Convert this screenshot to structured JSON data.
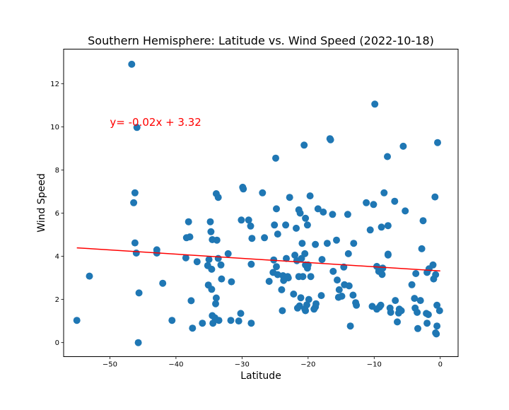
{
  "chart_data": {
    "type": "scatter",
    "title": "Southern Hemisphere: Latitude vs. Wind Speed (2022-10-18)",
    "xlabel": "Latitude",
    "ylabel": "Wind Speed",
    "xlim": [
      -57,
      2.7
    ],
    "ylim": [
      -0.65,
      13.6
    ],
    "xticks": [
      -50,
      -40,
      -30,
      -20,
      -10,
      0
    ],
    "yticks": [
      0,
      2,
      4,
      6,
      8,
      10,
      12
    ],
    "grid": false,
    "point_color": "#1f77b4",
    "regression": {
      "equation": "y= -0.02x + 3.32",
      "slope": -0.0195,
      "intercept": 3.32,
      "x_range": [
        -55,
        0
      ],
      "color": "#ff0000",
      "label_position": [
        -50,
        10.05
      ]
    },
    "points": [
      [
        -46.7,
        12.9
      ],
      [
        -45.9,
        9.97
      ],
      [
        -46.2,
        6.94
      ],
      [
        -46.4,
        6.48
      ],
      [
        -46.2,
        4.62
      ],
      [
        -46.0,
        4.15
      ],
      [
        -45.6,
        2.3
      ],
      [
        -45.7,
        0.0
      ],
      [
        -55.0,
        1.03
      ],
      [
        -53.1,
        3.08
      ],
      [
        -42.9,
        4.3
      ],
      [
        -42.9,
        4.15
      ],
      [
        -42.0,
        2.75
      ],
      [
        -40.6,
        1.03
      ],
      [
        -38.5,
        3.93
      ],
      [
        -38.4,
        4.86
      ],
      [
        -38.1,
        5.6
      ],
      [
        -37.9,
        4.9
      ],
      [
        -37.7,
        1.94
      ],
      [
        -37.5,
        0.67
      ],
      [
        -36.8,
        3.75
      ],
      [
        -36.0,
        0.9
      ],
      [
        -35.2,
        3.57
      ],
      [
        -35.1,
        2.67
      ],
      [
        -35.0,
        3.85
      ],
      [
        -34.8,
        5.6
      ],
      [
        -34.7,
        5.14
      ],
      [
        -34.6,
        2.47
      ],
      [
        -34.5,
        4.77
      ],
      [
        -34.6,
        3.4
      ],
      [
        -34.5,
        1.25
      ],
      [
        -34.4,
        0.9
      ],
      [
        -34.1,
        1.15
      ],
      [
        -34.0,
        1.8
      ],
      [
        -33.9,
        2.07
      ],
      [
        -33.9,
        6.9
      ],
      [
        -33.8,
        4.75
      ],
      [
        -33.6,
        6.73
      ],
      [
        -33.6,
        3.9
      ],
      [
        -33.5,
        1.03
      ],
      [
        -33.2,
        3.6
      ],
      [
        -33.1,
        2.95
      ],
      [
        -32.1,
        4.12
      ],
      [
        -31.7,
        1.03
      ],
      [
        -31.6,
        2.82
      ],
      [
        -30.5,
        1.0
      ],
      [
        -30.2,
        1.35
      ],
      [
        -30.1,
        5.68
      ],
      [
        -29.9,
        7.2
      ],
      [
        -29.8,
        7.12
      ],
      [
        -29.0,
        5.68
      ],
      [
        -28.7,
        5.4
      ],
      [
        -28.6,
        3.63
      ],
      [
        -28.6,
        0.9
      ],
      [
        -28.5,
        4.83
      ],
      [
        -26.9,
        6.94
      ],
      [
        -26.6,
        4.86
      ],
      [
        -25.9,
        2.84
      ],
      [
        -25.3,
        3.25
      ],
      [
        -25.2,
        3.83
      ],
      [
        -25.1,
        5.45
      ],
      [
        -24.9,
        8.55
      ],
      [
        -24.8,
        6.2
      ],
      [
        -24.8,
        3.52
      ],
      [
        -24.6,
        3.15
      ],
      [
        -24.6,
        5.03
      ],
      [
        -24.0,
        2.45
      ],
      [
        -23.9,
        1.48
      ],
      [
        -23.8,
        3.1
      ],
      [
        -23.7,
        2.88
      ],
      [
        -23.4,
        5.45
      ],
      [
        -23.3,
        3.9
      ],
      [
        -23.1,
        3.06
      ],
      [
        -23.0,
        3.0
      ],
      [
        -22.8,
        6.73
      ],
      [
        -22.2,
        2.25
      ],
      [
        -22.0,
        4.05
      ],
      [
        -21.8,
        5.3
      ],
      [
        -21.7,
        3.8
      ],
      [
        -21.6,
        1.6
      ],
      [
        -21.4,
        3.06
      ],
      [
        -21.4,
        6.15
      ],
      [
        -21.3,
        1.7
      ],
      [
        -21.2,
        6.0
      ],
      [
        -21.1,
        2.08
      ],
      [
        -21.0,
        3.9
      ],
      [
        -20.9,
        4.6
      ],
      [
        -20.8,
        3.06
      ],
      [
        -20.6,
        9.15
      ],
      [
        -20.5,
        1.55
      ],
      [
        -20.5,
        4.12
      ],
      [
        -20.4,
        1.48
      ],
      [
        -20.4,
        3.6
      ],
      [
        -20.4,
        5.76
      ],
      [
        -20.2,
        1.75
      ],
      [
        -20.1,
        3.45
      ],
      [
        -20.1,
        5.45
      ],
      [
        -20.0,
        3.6
      ],
      [
        -19.9,
        2.0
      ],
      [
        -19.7,
        6.8
      ],
      [
        -19.6,
        3.06
      ],
      [
        -19.1,
        1.55
      ],
      [
        -18.9,
        1.65
      ],
      [
        -18.9,
        4.55
      ],
      [
        -18.8,
        1.8
      ],
      [
        -18.5,
        6.2
      ],
      [
        -18.0,
        2.18
      ],
      [
        -17.9,
        3.85
      ],
      [
        -17.7,
        6.05
      ],
      [
        -17.1,
        4.6
      ],
      [
        -16.7,
        9.45
      ],
      [
        -16.6,
        9.4
      ],
      [
        -16.3,
        5.94
      ],
      [
        -16.2,
        3.3
      ],
      [
        -15.7,
        4.75
      ],
      [
        -15.6,
        2.9
      ],
      [
        -15.4,
        2.1
      ],
      [
        -15.3,
        2.45
      ],
      [
        -14.9,
        2.15
      ],
      [
        -14.6,
        3.5
      ],
      [
        -14.5,
        2.68
      ],
      [
        -14.0,
        5.94
      ],
      [
        -13.9,
        4.12
      ],
      [
        -13.8,
        2.63
      ],
      [
        -13.6,
        0.77
      ],
      [
        -13.2,
        2.2
      ],
      [
        -13.1,
        4.6
      ],
      [
        -12.8,
        1.85
      ],
      [
        -12.7,
        1.73
      ],
      [
        -11.2,
        6.48
      ],
      [
        -10.6,
        5.22
      ],
      [
        -10.3,
        1.68
      ],
      [
        -10.1,
        6.4
      ],
      [
        -9.9,
        11.05
      ],
      [
        -9.6,
        3.53
      ],
      [
        -9.6,
        1.55
      ],
      [
        -9.3,
        3.3
      ],
      [
        -9.2,
        1.65
      ],
      [
        -9.0,
        1.73
      ],
      [
        -8.9,
        5.35
      ],
      [
        -8.8,
        3.16
      ],
      [
        -8.7,
        3.45
      ],
      [
        -8.5,
        6.94
      ],
      [
        -8.0,
        8.62
      ],
      [
        -7.9,
        5.42
      ],
      [
        -7.9,
        4.1
      ],
      [
        -7.9,
        4.06
      ],
      [
        -7.6,
        1.6
      ],
      [
        -7.5,
        1.4
      ],
      [
        -6.9,
        6.55
      ],
      [
        -6.8,
        1.95
      ],
      [
        -6.5,
        0.96
      ],
      [
        -6.3,
        1.37
      ],
      [
        -6.2,
        1.55
      ],
      [
        -5.9,
        1.48
      ],
      [
        -5.6,
        9.1
      ],
      [
        -5.3,
        6.1
      ],
      [
        -4.3,
        2.68
      ],
      [
        -3.9,
        2.05
      ],
      [
        -3.8,
        1.6
      ],
      [
        -3.7,
        3.2
      ],
      [
        -3.5,
        1.4
      ],
      [
        -3.4,
        0.65
      ],
      [
        -3.0,
        1.95
      ],
      [
        -2.8,
        4.35
      ],
      [
        -2.6,
        5.65
      ],
      [
        -2.1,
        1.35
      ],
      [
        -2.0,
        3.25
      ],
      [
        -2.0,
        0.9
      ],
      [
        -1.8,
        1.3
      ],
      [
        -1.7,
        3.42
      ],
      [
        -1.1,
        3.6
      ],
      [
        -1.0,
        2.95
      ],
      [
        -0.8,
        6.75
      ],
      [
        -0.7,
        3.15
      ],
      [
        -0.7,
        0.45
      ],
      [
        -0.6,
        0.4
      ],
      [
        -0.5,
        1.73
      ],
      [
        -0.5,
        0.77
      ],
      [
        -0.4,
        9.27
      ],
      [
        -0.1,
        1.48
      ]
    ]
  }
}
